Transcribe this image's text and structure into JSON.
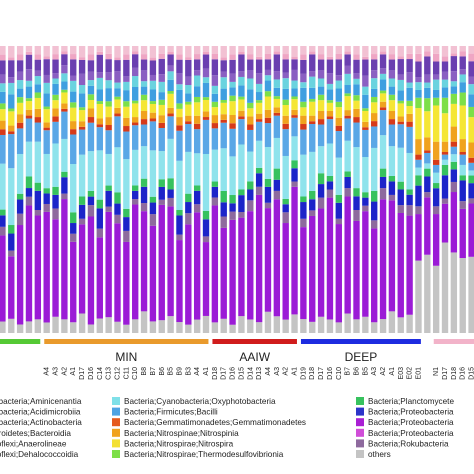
{
  "chart_data": {
    "type": "bar",
    "stacked": true,
    "normalized": true,
    "ylim": [
      0,
      100
    ],
    "categories": [
      "",
      "",
      "",
      "",
      "",
      "A4",
      "A3",
      "A2",
      "A1",
      "D17",
      "D16",
      "C14",
      "C13",
      "C12",
      "C11",
      "C10",
      "B8",
      "B7",
      "B6",
      "B5",
      "B9",
      "B3",
      "A4",
      "A1",
      "D18",
      "D17",
      "D16",
      "D15",
      "D14",
      "D13",
      "A4",
      "A3",
      "A2",
      "A1",
      "D19",
      "D18",
      "D17",
      "D16",
      "C10",
      "B7",
      "B6",
      "B5",
      "A3",
      "A2",
      "A1",
      "E03",
      "E02",
      "E01",
      "",
      "N1",
      "D17",
      "D18",
      "D16",
      "D15"
    ],
    "series": [
      {
        "name": "others",
        "values": [
          4,
          5,
          3,
          4,
          5,
          4,
          6,
          5,
          4,
          7,
          3,
          5,
          6,
          4,
          3,
          5,
          8,
          4,
          5,
          6,
          4,
          3,
          5,
          6,
          4,
          5,
          3,
          6,
          5,
          4,
          8,
          6,
          5,
          7,
          5,
          4,
          6,
          5,
          4,
          7,
          5,
          6,
          4,
          5,
          8,
          6,
          7,
          28,
          30,
          26,
          35,
          32,
          29,
          30
        ]
      },
      {
        "name": "Bacteria;Proteobacteria",
        "values": [
          30,
          22,
          35,
          40,
          38,
          42,
          36,
          44,
          30,
          32,
          38,
          28,
          40,
          35,
          30,
          42,
          37,
          33,
          45,
          39,
          30,
          36,
          40,
          26,
          44,
          32,
          38,
          35,
          40,
          47,
          39,
          42,
          36,
          48,
          33,
          38,
          40,
          45,
          37,
          42,
          36,
          39,
          35,
          43,
          41,
          40,
          38,
          18,
          22,
          20,
          15,
          24,
          19,
          21
        ]
      },
      {
        "name": "Bacteria;Rokubacteria",
        "values": [
          3,
          2,
          4,
          3,
          2,
          3,
          4,
          2,
          3,
          2,
          4,
          3,
          2,
          3,
          4,
          2,
          3,
          4,
          2,
          3,
          2,
          4,
          3,
          2,
          3,
          4,
          3,
          2,
          4,
          3,
          2,
          3,
          4,
          2,
          3,
          2,
          4,
          3,
          2,
          3,
          4,
          2,
          3,
          4,
          2,
          3,
          4,
          3,
          2,
          3,
          2,
          4,
          3,
          2
        ]
      },
      {
        "name": "Bacteria;Proteobacteria",
        "values": [
          4,
          6,
          5,
          3,
          7,
          4,
          5,
          6,
          4,
          5,
          3,
          7,
          6,
          4,
          5,
          3,
          6,
          4,
          5,
          3,
          7,
          4,
          5,
          6,
          4,
          5,
          3,
          6,
          4,
          5,
          6,
          4,
          3,
          5,
          6,
          4,
          5,
          3,
          6,
          4,
          5,
          3,
          7,
          4,
          5,
          6,
          4,
          8,
          6,
          7,
          9,
          5,
          8,
          6
        ]
      },
      {
        "name": "Bacteria;Planctomycetes",
        "values": [
          2,
          3,
          2,
          4,
          3,
          2,
          3,
          2,
          4,
          3,
          2,
          3,
          2,
          4,
          3,
          2,
          3,
          2,
          3,
          4,
          2,
          3,
          2,
          3,
          2,
          4,
          3,
          2,
          3,
          2,
          3,
          4,
          2,
          3,
          2,
          3,
          4,
          2,
          3,
          2,
          3,
          2,
          4,
          3,
          2,
          3,
          2,
          4,
          3,
          2,
          4,
          3,
          2,
          3
        ]
      },
      {
        "name": "Bacteria;Cyanobacteria;Oxyphotobacteria",
        "values": [
          16,
          20,
          14,
          12,
          15,
          13,
          16,
          12,
          18,
          15,
          14,
          17,
          12,
          16,
          18,
          13,
          12,
          16,
          11,
          14,
          18,
          15,
          12,
          20,
          12,
          15,
          14,
          16,
          11,
          10,
          12,
          11,
          16,
          9,
          15,
          14,
          10,
          12,
          14,
          11,
          15,
          13,
          16,
          12,
          11,
          13,
          14,
          3,
          2,
          4,
          2,
          3,
          4,
          2
        ]
      },
      {
        "name": "Bacteria;Firmicutes;Bacilli",
        "values": [
          10,
          12,
          9,
          8,
          7,
          9,
          8,
          10,
          11,
          9,
          10,
          8,
          9,
          11,
          10,
          9,
          8,
          10,
          9,
          8,
          11,
          10,
          9,
          12,
          8,
          9,
          10,
          9,
          8,
          7,
          9,
          8,
          10,
          7,
          9,
          10,
          8,
          9,
          10,
          8,
          9,
          10,
          8,
          9,
          8,
          9,
          10,
          3,
          4,
          3,
          2,
          3,
          4,
          3
        ]
      },
      {
        "name": "Bacteria;Gemmatimonadetes;Gemmatimonadetes",
        "values": [
          2,
          1,
          2,
          1,
          2,
          1,
          2,
          1,
          2,
          1,
          2,
          1,
          2,
          1,
          2,
          1,
          2,
          1,
          2,
          1,
          2,
          1,
          2,
          1,
          2,
          1,
          2,
          1,
          2,
          1,
          2,
          1,
          2,
          1,
          2,
          1,
          2,
          1,
          2,
          1,
          2,
          1,
          2,
          1,
          2,
          1,
          2,
          2,
          1,
          2,
          1,
          2,
          1,
          2
        ]
      },
      {
        "name": "Bacteria;Nitrospinae;Nitrospinia",
        "values": [
          3,
          2,
          3,
          2,
          3,
          2,
          3,
          2,
          3,
          2,
          3,
          2,
          3,
          2,
          3,
          2,
          3,
          2,
          3,
          2,
          3,
          2,
          3,
          2,
          3,
          2,
          3,
          2,
          3,
          2,
          3,
          2,
          3,
          2,
          3,
          2,
          3,
          2,
          3,
          2,
          3,
          2,
          3,
          2,
          3,
          2,
          3,
          6,
          5,
          7,
          4,
          6,
          5,
          6
        ]
      },
      {
        "name": "Bacteria;Nitrospirae;Nitrospira",
        "values": [
          4,
          5,
          4,
          3,
          4,
          5,
          3,
          4,
          5,
          4,
          3,
          5,
          4,
          3,
          4,
          5,
          4,
          3,
          4,
          5,
          3,
          4,
          5,
          4,
          3,
          4,
          5,
          4,
          3,
          4,
          5,
          3,
          4,
          4,
          3,
          5,
          4,
          3,
          4,
          5,
          3,
          4,
          4,
          3,
          4,
          5,
          3,
          12,
          10,
          14,
          11,
          9,
          13,
          10
        ]
      },
      {
        "name": "Bacteria;Nitrospirae;Thermodesulfovibrionia",
        "values": [
          2,
          1,
          2,
          1,
          2,
          1,
          2,
          1,
          2,
          1,
          2,
          1,
          2,
          1,
          2,
          1,
          2,
          1,
          2,
          1,
          2,
          1,
          2,
          1,
          2,
          1,
          2,
          1,
          2,
          1,
          2,
          1,
          2,
          1,
          2,
          1,
          2,
          1,
          2,
          1,
          2,
          1,
          2,
          1,
          2,
          1,
          2,
          4,
          5,
          3,
          6,
          4,
          5,
          4
        ]
      },
      {
        "name": "Bacteria;Acidobacteria;Aminicenantia",
        "values": [
          4,
          5,
          3,
          4,
          3,
          5,
          4,
          3,
          4,
          5,
          3,
          4,
          5,
          3,
          4,
          5,
          3,
          4,
          3,
          4,
          5,
          3,
          4,
          5,
          3,
          4,
          3,
          4,
          5,
          3,
          4,
          3,
          4,
          3,
          5,
          4,
          3,
          4,
          5,
          3,
          4,
          5,
          3,
          4,
          3,
          4,
          5,
          3,
          4,
          3,
          4,
          3,
          4,
          5
        ]
      },
      {
        "name": "Bacteria;Proteobacteria;Acidimicrobiia",
        "values": [
          3,
          4,
          3,
          2,
          3,
          4,
          2,
          3,
          4,
          3,
          2,
          4,
          3,
          2,
          3,
          4,
          2,
          3,
          4,
          3,
          2,
          3,
          4,
          2,
          3,
          4,
          2,
          3,
          4,
          3,
          2,
          3,
          4,
          3,
          2,
          4,
          3,
          2,
          3,
          4,
          2,
          3,
          4,
          2,
          3,
          4,
          2,
          3,
          2,
          4,
          3,
          2,
          3,
          4
        ]
      },
      {
        "name": "Bacteria;Proteobacteria;Actinobacteria",
        "values": [
          3,
          2,
          3,
          4,
          2,
          3,
          2,
          3,
          2,
          4,
          3,
          2,
          3,
          4,
          2,
          3,
          4,
          2,
          3,
          2,
          4,
          3,
          2,
          3,
          4,
          2,
          3,
          2,
          3,
          4,
          2,
          3,
          2,
          4,
          3,
          2,
          3,
          4,
          2,
          3,
          2,
          4,
          3,
          2,
          3,
          2,
          4,
          2,
          3,
          2,
          3,
          4,
          2,
          3
        ]
      },
      {
        "name": "Bacteria;Bacteroidetes;Bacteroidia",
        "values": [
          5,
          6,
          4,
          5,
          4,
          6,
          5,
          4,
          6,
          5,
          4,
          6,
          5,
          4,
          6,
          5,
          4,
          5,
          6,
          4,
          5,
          6,
          4,
          5,
          6,
          4,
          5,
          6,
          4,
          5,
          4,
          6,
          5,
          4,
          5,
          6,
          4,
          5,
          6,
          4,
          5,
          6,
          4,
          5,
          4,
          6,
          5,
          6,
          7,
          5,
          4,
          6,
          5,
          6
        ]
      },
      {
        "name": "Bacteria;Chloroflexi;Anaerolineae",
        "values": [
          2,
          1,
          2,
          1,
          2,
          1,
          2,
          1,
          2,
          1,
          2,
          1,
          2,
          1,
          2,
          1,
          2,
          1,
          2,
          1,
          2,
          1,
          2,
          1,
          2,
          1,
          2,
          1,
          2,
          1,
          2,
          1,
          2,
          1,
          2,
          1,
          2,
          1,
          2,
          1,
          2,
          1,
          2,
          1,
          2,
          1,
          2,
          3,
          2,
          3,
          2,
          1,
          2,
          3
        ]
      },
      {
        "name": "Bacteria;Chloroflexi;Dehalococcoidia",
        "values": [
          3,
          4,
          3,
          2,
          3,
          4,
          3,
          2,
          3,
          4,
          3,
          2,
          3,
          4,
          3,
          2,
          3,
          4,
          3,
          2,
          3,
          4,
          3,
          2,
          3,
          4,
          3,
          2,
          3,
          4,
          3,
          2,
          3,
          4,
          3,
          2,
          3,
          4,
          3,
          2,
          3,
          4,
          3,
          2,
          3,
          4,
          3,
          3,
          2,
          3,
          4,
          3,
          2,
          3
        ]
      }
    ],
    "groups": [
      {
        "label": "",
        "from": 0,
        "to": 4,
        "color": "#55c935"
      },
      {
        "label": "MIN",
        "from": 5,
        "to": 23,
        "color": "#e99a2c"
      },
      {
        "label": "AAIW",
        "from": 24,
        "to": 33,
        "color": "#d01c1c"
      },
      {
        "label": "DEEP",
        "from": 34,
        "to": 47,
        "color": "#1d2be0"
      },
      {
        "label": "",
        "from": 49,
        "to": 53,
        "color": "#f2b3c9"
      }
    ],
    "legend": {
      "placement": "bottom",
      "columns": [
        [
          {
            "text": "obacteria;Aminicenantia",
            "color": "#f7f7f7"
          },
          {
            "text": "obacteria;Acidimicrobiia",
            "color": "#f7f7f7"
          },
          {
            "text": "obacteria;Actinobacteria",
            "color": "#f7f7f7"
          },
          {
            "text": "eroidetes;Bacteroidia",
            "color": "#f7f7f7"
          },
          {
            "text": "roflexi;Anaerolineae",
            "color": "#f7f7f7"
          },
          {
            "text": "roflexi;Dehalococcoidia",
            "color": "#f7f7f7"
          }
        ],
        [
          {
            "text": "Bacteria;Cyanobacteria;Oxyphotobacteria",
            "color": "#7fe0e8"
          },
          {
            "text": "Bacteria;Firmicutes;Bacilli",
            "color": "#4ea3e3"
          },
          {
            "text": "Bacteria;Gemmatimonadetes;Gemmatimonadetes",
            "color": "#e55a1e"
          },
          {
            "text": "Bacteria;Nitrospinae;Nitrospinia",
            "color": "#f0a21e"
          },
          {
            "text": "Bacteria;Nitrospirae;Nitrospira",
            "color": "#f3e033"
          },
          {
            "text": "Bacteria;Nitrospirae;Thermodesulfovibrionia",
            "color": "#7ddf48"
          }
        ],
        [
          {
            "text": "Bacteria;Planctomycete",
            "color": "#37c25e"
          },
          {
            "text": "Bacteria;Proteobacteria",
            "color": "#2c34c9"
          },
          {
            "text": "Bacteria;Proteobacteria",
            "color": "#a91fd4"
          },
          {
            "text": "Bacteria;Proteobacteria",
            "color": "#d04dd8"
          },
          {
            "text": "Bacteria;Rokubacteria",
            "color": "#8e6a9e"
          },
          {
            "text": "others",
            "color": "#c4c4c4"
          }
        ]
      ]
    },
    "colors": {
      "others": "#c4c4c4",
      "purple_main": "#9b1bd6",
      "magenta": "#d04dd8",
      "rokubacteria": "#8e6a9e",
      "blue_dark": "#1c24c9",
      "planctomycetes": "#37c25e",
      "cyano_light": "#8fe3ec",
      "bacilli_blue": "#5aa7e6",
      "gemma_red": "#d63a1a",
      "nitrospinia_orange": "#f0a21e",
      "nitrospira_yellow": "#f5e635",
      "thermo_green": "#7ddf48",
      "aminicenantia": "#3f9fe0",
      "acidimicrobiia": "#6ad3df",
      "actinobacteria": "#8a5fc2",
      "bacteroidia": "#6a3fb0",
      "anaerolineae": "#efa6c4",
      "dehalococcoidia": "#f2c1d3"
    }
  }
}
